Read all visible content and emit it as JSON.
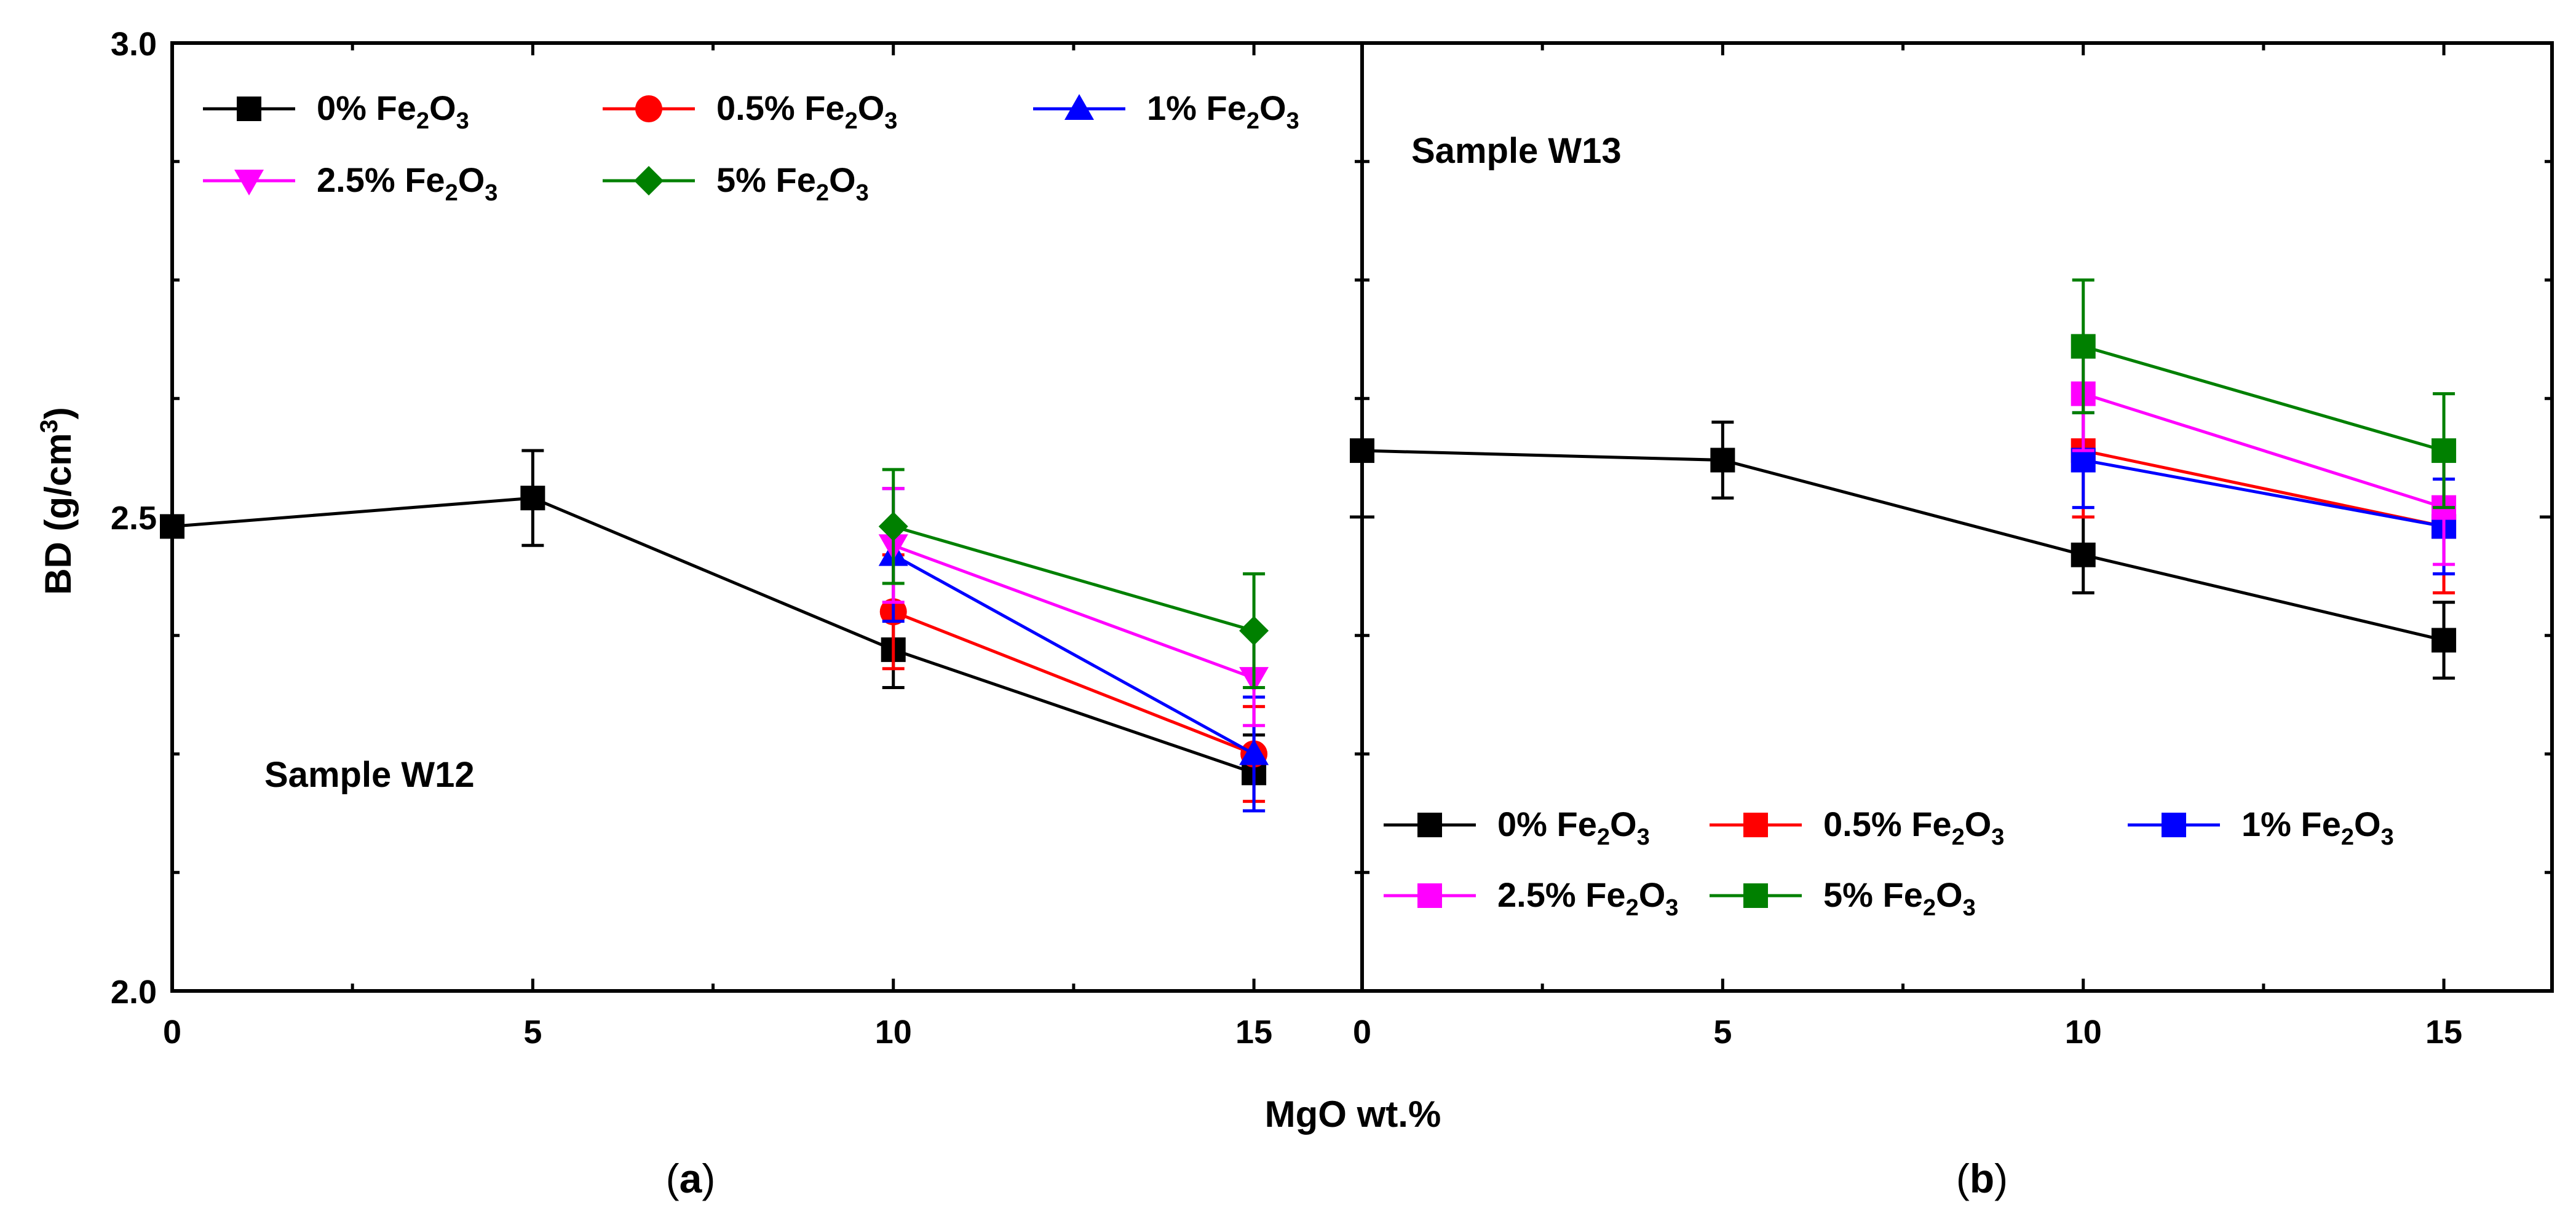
{
  "figure": {
    "y_axis_label": "BD (g/cm",
    "y_axis_label_sup": "3",
    "y_axis_label_close": ")",
    "x_axis_label": "MgO wt.%",
    "y_ticks": [
      "2.0",
      "2.5",
      "3.0"
    ],
    "x_ticks": [
      "0",
      "5",
      "10",
      "15"
    ],
    "captions": [
      "a",
      "b"
    ]
  },
  "legend": {
    "prefix_labels": [
      "0%",
      "0.5%",
      "1%",
      "2.5%",
      "5%"
    ],
    "formula": {
      "part1": "Fe",
      "sub1": "2",
      "part2": "O",
      "sub2": "3"
    }
  },
  "chart_data": [
    {
      "type": "line",
      "panel": "a",
      "title": "Sample W12",
      "xlabel": "MgO wt.%",
      "ylabel": "BD (g/cm³)",
      "xlim": [
        0,
        16.5
      ],
      "ylim": [
        2.0,
        3.0
      ],
      "x_ticks": [
        0,
        5,
        10,
        15
      ],
      "y_ticks": [
        2.0,
        2.5,
        3.0
      ],
      "legend_position": "top-left",
      "series": [
        {
          "name": "0% Fe2O3",
          "color": "#000000",
          "marker": "square",
          "x": [
            0,
            5,
            10,
            15
          ],
          "y": [
            2.49,
            2.52,
            2.36,
            2.23
          ],
          "err": [
            0.01,
            0.05,
            0.04,
            0.04
          ]
        },
        {
          "name": "0.5% Fe2O3",
          "color": "#ff0000",
          "marker": "circle",
          "x": [
            10,
            15
          ],
          "y": [
            2.4,
            2.25
          ],
          "err": [
            0.06,
            0.05
          ]
        },
        {
          "name": "1% Fe2O3",
          "color": "#0000ff",
          "marker": "triangle-up",
          "x": [
            10,
            15
          ],
          "y": [
            2.46,
            2.25
          ],
          "err": [
            0.07,
            0.06
          ]
        },
        {
          "name": "2.5% Fe2O3",
          "color": "#ff00ff",
          "marker": "triangle-down",
          "x": [
            10,
            15
          ],
          "y": [
            2.47,
            2.33
          ],
          "err": [
            0.06,
            0.05
          ]
        },
        {
          "name": "5% Fe2O3",
          "color": "#008000",
          "marker": "diamond",
          "x": [
            10,
            15
          ],
          "y": [
            2.49,
            2.38
          ],
          "err": [
            0.06,
            0.06
          ]
        }
      ]
    },
    {
      "type": "line",
      "panel": "b",
      "title": "Sample W13",
      "xlabel": "MgO wt.%",
      "ylabel": "BD (g/cm³)",
      "xlim": [
        0,
        16.5
      ],
      "ylim": [
        2.0,
        3.0
      ],
      "x_ticks": [
        0,
        5,
        10,
        15
      ],
      "y_ticks": [
        2.0,
        2.5,
        3.0
      ],
      "legend_position": "bottom-right",
      "series": [
        {
          "name": "0% Fe2O3",
          "color": "#000000",
          "marker": "square",
          "x": [
            0,
            5,
            10,
            15
          ],
          "y": [
            2.57,
            2.56,
            2.46,
            2.37
          ],
          "err": [
            0.01,
            0.04,
            0.04,
            0.04
          ]
        },
        {
          "name": "0.5% Fe2O3",
          "color": "#ff0000",
          "marker": "square",
          "x": [
            10,
            15
          ],
          "y": [
            2.57,
            2.49
          ],
          "err": [
            0.07,
            0.07
          ]
        },
        {
          "name": "1% Fe2O3",
          "color": "#0000ff",
          "marker": "square",
          "x": [
            10,
            15
          ],
          "y": [
            2.56,
            2.49
          ],
          "err": [
            0.05,
            0.05
          ]
        },
        {
          "name": "2.5% Fe2O3",
          "color": "#ff00ff",
          "marker": "square",
          "x": [
            10,
            15
          ],
          "y": [
            2.63,
            2.51
          ],
          "err": [
            0.06,
            0.06
          ]
        },
        {
          "name": "5% Fe2O3",
          "color": "#008000",
          "marker": "square",
          "x": [
            10,
            15
          ],
          "y": [
            2.68,
            2.57
          ],
          "err": [
            0.07,
            0.06
          ]
        }
      ]
    }
  ]
}
